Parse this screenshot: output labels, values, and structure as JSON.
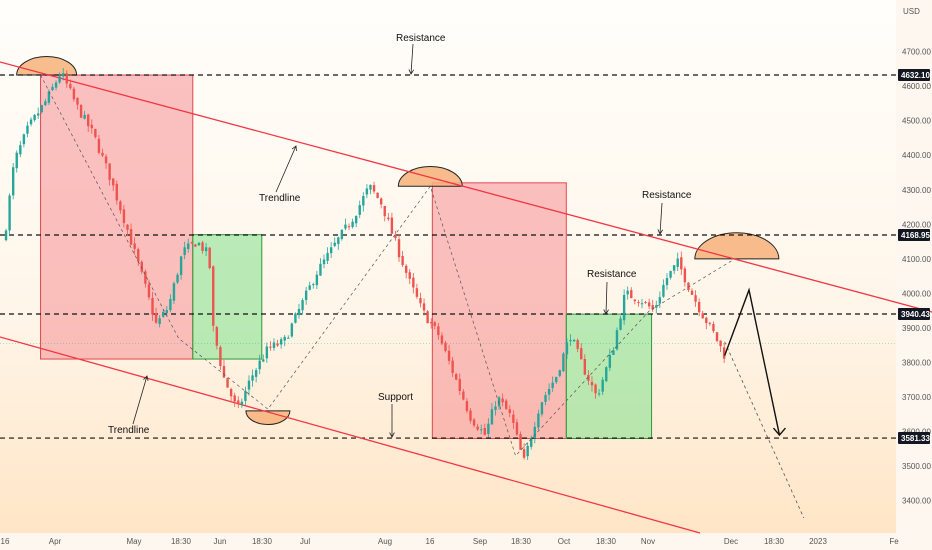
{
  "chart_data": {
    "type": "candlestick",
    "currency": "USD",
    "ylim": [
      3300,
      4850
    ],
    "y_ticks": [
      "4700.00",
      "4600.00",
      "4500.00",
      "4400.00",
      "4300.00",
      "4200.00",
      "4100.00",
      "4000.00",
      "3900.00",
      "3800.00",
      "3700.00",
      "3600.00",
      "3500.00",
      "3400.00"
    ],
    "x_ticks": [
      "16",
      "Apr",
      "May",
      "18:30",
      "Jun",
      "18:30",
      "Jul",
      "Aug",
      "16",
      "Sep",
      "18:30",
      "Oct",
      "18:30",
      "Nov",
      "Dec",
      "18:30",
      "2023",
      "Fe"
    ],
    "price_labels": [
      {
        "text": "4632.10",
        "value": 4632.1
      },
      {
        "text": "4168.95",
        "value": 4168.95
      },
      {
        "text": "3940.43",
        "value": 3940.43
      },
      {
        "text": "3581.33",
        "value": 3581.33
      }
    ],
    "annotations": [
      "Resistance",
      "Trendline",
      "Resistance",
      "Resistance",
      "Support",
      "Trendline"
    ],
    "colors": {
      "up": "#26a69a",
      "down": "#ef5350",
      "sell_zone": "#f58f94",
      "buy_zone": "#7fe08a",
      "trendline": "#f23645"
    },
    "path_points": [
      {
        "t": 0,
        "v": 4150
      },
      {
        "t": 0.25,
        "v": 4380
      },
      {
        "t": 0.6,
        "v": 4480
      },
      {
        "t": 1.05,
        "v": 4560
      },
      {
        "t": 1.4,
        "v": 4640
      },
      {
        "t": 1.8,
        "v": 4540
      },
      {
        "t": 2.2,
        "v": 4460
      },
      {
        "t": 2.6,
        "v": 4340
      },
      {
        "t": 3.0,
        "v": 4200
      },
      {
        "t": 3.4,
        "v": 4050
      },
      {
        "t": 3.75,
        "v": 3910
      },
      {
        "t": 4.05,
        "v": 3960
      },
      {
        "t": 4.4,
        "v": 4120
      },
      {
        "t": 4.75,
        "v": 4150
      },
      {
        "t": 5.05,
        "v": 4110
      },
      {
        "t": 5.15,
        "v": 3900
      },
      {
        "t": 5.4,
        "v": 3760
      },
      {
        "t": 5.75,
        "v": 3660
      },
      {
        "t": 6.1,
        "v": 3760
      },
      {
        "t": 6.5,
        "v": 3840
      },
      {
        "t": 6.9,
        "v": 3860
      },
      {
        "t": 7.3,
        "v": 3960
      },
      {
        "t": 7.7,
        "v": 4060
      },
      {
        "t": 8.2,
        "v": 4150
      },
      {
        "t": 8.6,
        "v": 4220
      },
      {
        "t": 9.0,
        "v": 4310
      },
      {
        "t": 9.3,
        "v": 4260
      },
      {
        "t": 9.6,
        "v": 4160
      },
      {
        "t": 10.0,
        "v": 4030
      },
      {
        "t": 10.3,
        "v": 3950
      },
      {
        "t": 10.7,
        "v": 3880
      },
      {
        "t": 11.1,
        "v": 3760
      },
      {
        "t": 11.5,
        "v": 3640
      },
      {
        "t": 11.85,
        "v": 3590
      },
      {
        "t": 12.15,
        "v": 3700
      },
      {
        "t": 12.5,
        "v": 3640
      },
      {
        "t": 12.8,
        "v": 3510
      },
      {
        "t": 13.2,
        "v": 3680
      },
      {
        "t": 13.6,
        "v": 3760
      },
      {
        "t": 13.95,
        "v": 3880
      },
      {
        "t": 14.25,
        "v": 3790
      },
      {
        "t": 14.6,
        "v": 3700
      },
      {
        "t": 15.0,
        "v": 3840
      },
      {
        "t": 15.3,
        "v": 4000
      },
      {
        "t": 15.7,
        "v": 3980
      },
      {
        "t": 16.0,
        "v": 3950
      },
      {
        "t": 16.3,
        "v": 4040
      },
      {
        "t": 16.6,
        "v": 4090
      },
      {
        "t": 16.9,
        "v": 4010
      },
      {
        "t": 17.2,
        "v": 3940
      },
      {
        "t": 17.5,
        "v": 3880
      },
      {
        "t": 17.75,
        "v": 3820
      }
    ],
    "projection": [
      {
        "t": 17.75,
        "v": 3820
      },
      {
        "t": 18.35,
        "v": 4010
      },
      {
        "t": 19.1,
        "v": 3590
      }
    ]
  }
}
